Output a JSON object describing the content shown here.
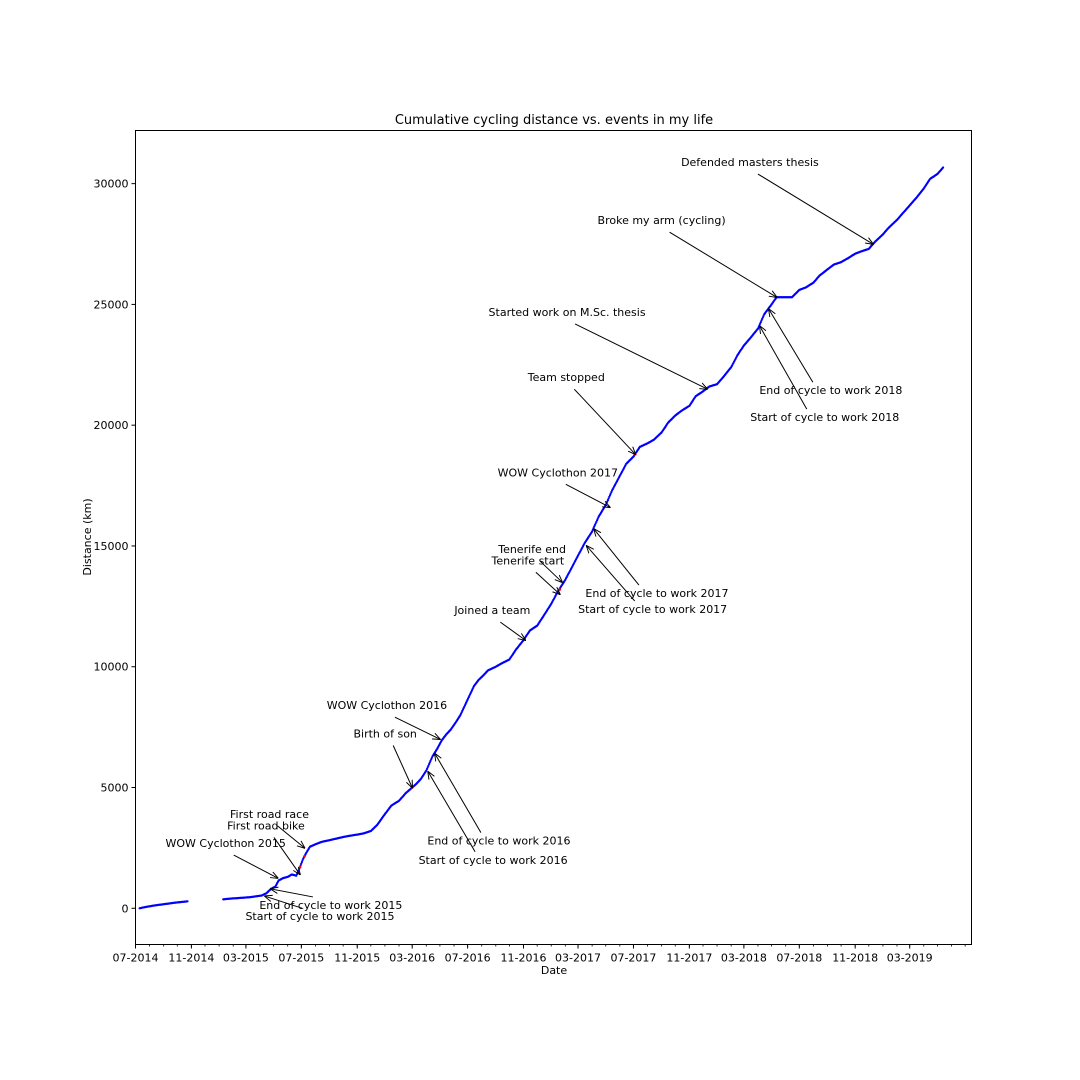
{
  "chart_data": {
    "type": "scatter",
    "title": "Cumulative cycling distance vs. events in my life",
    "xlabel": "Date",
    "ylabel": "Distance (km)",
    "x_range": [
      "2014-07-01",
      "2019-07-15"
    ],
    "ylim": [
      -1500,
      32200
    ],
    "x_ticks": [
      {
        "date": "2014-07-01",
        "label": "07-2014"
      },
      {
        "date": "2014-11-01",
        "label": "11-2014"
      },
      {
        "date": "2015-03-01",
        "label": "03-2015"
      },
      {
        "date": "2015-07-01",
        "label": "07-2015"
      },
      {
        "date": "2015-11-01",
        "label": "11-2015"
      },
      {
        "date": "2016-03-01",
        "label": "03-2016"
      },
      {
        "date": "2016-07-01",
        "label": "07-2016"
      },
      {
        "date": "2016-11-01",
        "label": "11-2016"
      },
      {
        "date": "2017-03-01",
        "label": "03-2017"
      },
      {
        "date": "2017-07-01",
        "label": "07-2017"
      },
      {
        "date": "2017-11-01",
        "label": "11-2017"
      },
      {
        "date": "2018-03-01",
        "label": "03-2018"
      },
      {
        "date": "2018-07-01",
        "label": "07-2018"
      },
      {
        "date": "2018-11-01",
        "label": "11-2018"
      },
      {
        "date": "2019-03-01",
        "label": "03-2019"
      }
    ],
    "y_ticks": [
      0,
      5000,
      10000,
      15000,
      20000,
      25000,
      30000
    ],
    "grid": false,
    "legend": "none",
    "colors": {
      "points": "#0000ff",
      "highlight": "#ff0000",
      "axes": "#000000"
    },
    "series": [
      {
        "color": "#0000ff",
        "points": [
          [
            "2014-07-10",
            0
          ],
          [
            "2014-07-25",
            60
          ],
          [
            "2014-08-10",
            110
          ],
          [
            "2014-08-25",
            150
          ],
          [
            "2014-09-10",
            190
          ],
          [
            "2014-09-25",
            230
          ],
          [
            "2014-10-10",
            260
          ],
          [
            "2014-10-25",
            290
          ],
          [
            "2015-01-10",
            370
          ],
          [
            "2015-01-25",
            400
          ],
          [
            "2015-02-10",
            420
          ],
          [
            "2015-02-25",
            440
          ],
          [
            "2015-03-10",
            460
          ],
          [
            "2015-03-25",
            500
          ],
          [
            "2015-04-05",
            530
          ],
          [
            "2015-04-15",
            620
          ],
          [
            "2015-04-25",
            800
          ],
          [
            "2015-05-05",
            900
          ],
          [
            "2015-05-12",
            1150
          ],
          [
            "2015-05-22",
            1250
          ],
          [
            "2015-06-01",
            1300
          ],
          [
            "2015-06-10",
            1400
          ],
          [
            "2015-06-20",
            1350
          ],
          [
            "2015-06-28",
            1700
          ],
          [
            "2015-07-05",
            2050
          ],
          [
            "2015-07-12",
            2300
          ],
          [
            "2015-07-20",
            2550
          ],
          [
            "2015-08-01",
            2650
          ],
          [
            "2015-08-15",
            2750
          ],
          [
            "2015-09-01",
            2820
          ],
          [
            "2015-09-15",
            2880
          ],
          [
            "2015-10-01",
            2950
          ],
          [
            "2015-10-15",
            3000
          ],
          [
            "2015-11-01",
            3050
          ],
          [
            "2015-11-15",
            3100
          ],
          [
            "2015-12-01",
            3200
          ],
          [
            "2015-12-15",
            3450
          ],
          [
            "2016-01-01",
            3900
          ],
          [
            "2016-01-15",
            4250
          ],
          [
            "2016-02-01",
            4450
          ],
          [
            "2016-02-15",
            4750
          ],
          [
            "2016-03-01",
            5000
          ],
          [
            "2016-03-10",
            5150
          ],
          [
            "2016-03-20",
            5350
          ],
          [
            "2016-04-01",
            5700
          ],
          [
            "2016-04-15",
            6300
          ],
          [
            "2016-04-25",
            6600
          ],
          [
            "2016-05-05",
            6950
          ],
          [
            "2016-05-15",
            7200
          ],
          [
            "2016-05-25",
            7400
          ],
          [
            "2016-06-05",
            7700
          ],
          [
            "2016-06-15",
            8000
          ],
          [
            "2016-06-25",
            8400
          ],
          [
            "2016-07-05",
            8800
          ],
          [
            "2016-07-15",
            9200
          ],
          [
            "2016-07-25",
            9450
          ],
          [
            "2016-08-05",
            9650
          ],
          [
            "2016-08-15",
            9850
          ],
          [
            "2016-09-01",
            10000
          ],
          [
            "2016-09-15",
            10150
          ],
          [
            "2016-10-01",
            10300
          ],
          [
            "2016-10-15",
            10700
          ],
          [
            "2016-11-01",
            11100
          ],
          [
            "2016-11-15",
            11500
          ],
          [
            "2016-12-01",
            11700
          ],
          [
            "2016-12-15",
            12100
          ],
          [
            "2017-01-01",
            12600
          ],
          [
            "2017-01-15",
            13100
          ],
          [
            "2017-02-01",
            13600
          ],
          [
            "2017-02-15",
            14100
          ],
          [
            "2017-03-01",
            14600
          ],
          [
            "2017-03-15",
            15100
          ],
          [
            "2017-04-01",
            15600
          ],
          [
            "2017-04-15",
            16200
          ],
          [
            "2017-05-01",
            16700
          ],
          [
            "2017-05-15",
            17300
          ],
          [
            "2017-06-01",
            17900
          ],
          [
            "2017-06-15",
            18400
          ],
          [
            "2017-07-01",
            18700
          ],
          [
            "2017-07-15",
            19100
          ],
          [
            "2017-08-01",
            19250
          ],
          [
            "2017-08-15",
            19400
          ],
          [
            "2017-09-01",
            19700
          ],
          [
            "2017-09-15",
            20100
          ],
          [
            "2017-10-01",
            20400
          ],
          [
            "2017-10-15",
            20600
          ],
          [
            "2017-11-01",
            20800
          ],
          [
            "2017-11-15",
            21200
          ],
          [
            "2017-12-01",
            21400
          ],
          [
            "2017-12-15",
            21600
          ],
          [
            "2018-01-01",
            21700
          ],
          [
            "2018-01-15",
            22000
          ],
          [
            "2018-02-01",
            22400
          ],
          [
            "2018-02-15",
            22900
          ],
          [
            "2018-03-01",
            23300
          ],
          [
            "2018-03-15",
            23600
          ],
          [
            "2018-04-01",
            24000
          ],
          [
            "2018-04-15",
            24600
          ],
          [
            "2018-05-01",
            25000
          ],
          [
            "2018-05-12",
            25300
          ],
          [
            "2018-06-15",
            25300
          ],
          [
            "2018-07-01",
            25600
          ],
          [
            "2018-07-15",
            25700
          ],
          [
            "2018-08-01",
            25900
          ],
          [
            "2018-08-15",
            26200
          ],
          [
            "2018-09-01",
            26450
          ],
          [
            "2018-09-15",
            26650
          ],
          [
            "2018-10-01",
            26750
          ],
          [
            "2018-10-15",
            26900
          ],
          [
            "2018-11-01",
            27100
          ],
          [
            "2018-11-15",
            27200
          ],
          [
            "2018-12-01",
            27300
          ],
          [
            "2018-12-15",
            27600
          ],
          [
            "2019-01-01",
            27900
          ],
          [
            "2019-01-15",
            28200
          ],
          [
            "2019-02-01",
            28500
          ],
          [
            "2019-02-15",
            28800
          ],
          [
            "2019-03-01",
            29100
          ],
          [
            "2019-03-15",
            29400
          ],
          [
            "2019-04-01",
            29800
          ],
          [
            "2019-04-15",
            30200
          ],
          [
            "2019-05-01",
            30400
          ],
          [
            "2019-05-15",
            30700
          ]
        ]
      },
      {
        "color": "#ff0000",
        "points": [
          [
            "2015-06-28",
            1700
          ],
          [
            "2015-07-08",
            2150
          ],
          [
            "2016-03-01",
            5000
          ],
          [
            "2017-01-20",
            13200
          ],
          [
            "2017-07-05",
            18800
          ]
        ]
      }
    ],
    "annotations": [
      {
        "text": "Defended masters thesis",
        "date": "2018-12-10",
        "y": 27500,
        "text_pos": "upper-left"
      },
      {
        "text": "Broke my arm (cycling)",
        "date": "2018-05-12",
        "y": 25300,
        "text_pos": "upper-left"
      },
      {
        "text": "Started work on M.Sc. thesis",
        "date": "2017-12-10",
        "y": 21500,
        "text_pos": "upper-left"
      },
      {
        "text": "End of cycle to work 2018",
        "date": "2018-04-25",
        "y": 24800,
        "text_pos": "lower-right"
      },
      {
        "text": "Start of cycle to work 2018",
        "date": "2018-04-05",
        "y": 24100,
        "text_pos": "lower-right"
      },
      {
        "text": "Team stopped",
        "date": "2017-07-05",
        "y": 18800,
        "text_pos": "upper-left"
      },
      {
        "text": "WOW Cyclothon 2017",
        "date": "2017-05-10",
        "y": 16600,
        "text_pos": "upper-left"
      },
      {
        "text": "End of cycle to work 2017",
        "date": "2017-04-05",
        "y": 15700,
        "text_pos": "lower-right"
      },
      {
        "text": "Start of cycle to work 2017",
        "date": "2017-03-20",
        "y": 15000,
        "text_pos": "lower-right"
      },
      {
        "text": "Tenerife end",
        "date": "2017-01-25",
        "y": 13500,
        "text_pos": "upper-left"
      },
      {
        "text": "Tenerife start",
        "date": "2017-01-20",
        "y": 13000,
        "text_pos": "upper-left"
      },
      {
        "text": "Joined a team",
        "date": "2016-11-05",
        "y": 11100,
        "text_pos": "upper-left"
      },
      {
        "text": "WOW Cyclothon 2016",
        "date": "2016-05-01",
        "y": 7000,
        "text_pos": "upper-left"
      },
      {
        "text": "Birth of son",
        "date": "2016-03-01",
        "y": 5000,
        "text_pos": "upper-left"
      },
      {
        "text": "End of cycle to work 2016",
        "date": "2016-04-20",
        "y": 6400,
        "text_pos": "lower-right"
      },
      {
        "text": "Start of cycle to work 2016",
        "date": "2016-04-05",
        "y": 5650,
        "text_pos": "lower-right"
      },
      {
        "text": "First road race",
        "date": "2015-07-08",
        "y": 2500,
        "text_pos": "upper-left"
      },
      {
        "text": "First road bike",
        "date": "2015-06-28",
        "y": 1400,
        "text_pos": "upper-left"
      },
      {
        "text": "WOW Cyclothon 2015",
        "date": "2015-05-10",
        "y": 1250,
        "text_pos": "upper-left"
      },
      {
        "text": "End of cycle to work 2015",
        "date": "2015-04-25",
        "y": 800,
        "text_pos": "lower-right"
      },
      {
        "text": "Start of cycle to work 2015",
        "date": "2015-04-12",
        "y": 500,
        "text_pos": "lower-right"
      }
    ]
  }
}
